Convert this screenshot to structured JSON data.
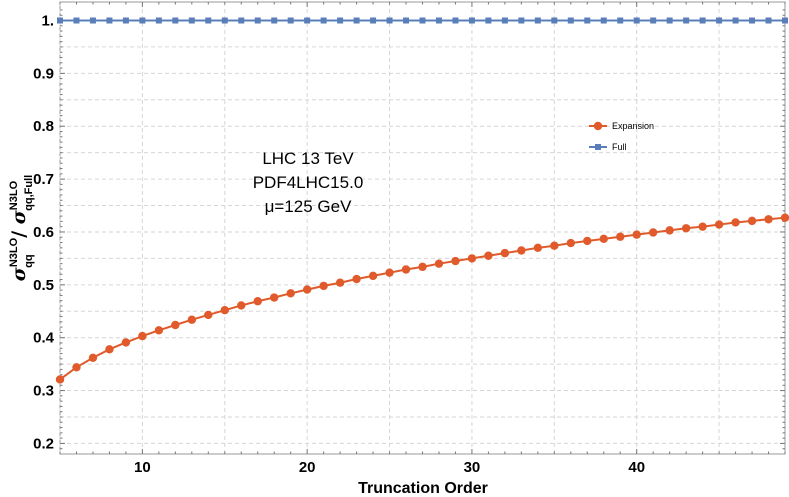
{
  "chart_data": {
    "type": "line",
    "xlabel": "Truncation Order",
    "ylabel": {
      "symbol": "σ",
      "num_sup": "N3LO",
      "num_sub": "qq",
      "slash": " / ",
      "den_sup": "N3LO",
      "den_sub": "qq,Full"
    },
    "xlim": [
      5,
      49
    ],
    "ylim": [
      0.18,
      1.035
    ],
    "x_ticks": [
      10,
      20,
      30,
      40
    ],
    "x_tick_labels": [
      "10",
      "20",
      "30",
      "40"
    ],
    "y_ticks": [
      0.2,
      0.3,
      0.4,
      0.5,
      0.6,
      0.7,
      0.8,
      0.9,
      1.0
    ],
    "y_tick_labels": [
      "0.2",
      "0.3",
      "0.4",
      "0.5",
      "0.6",
      "0.7",
      "0.8",
      "0.9",
      "1."
    ],
    "grid": true,
    "legend_position": "center-right",
    "annotation": [
      "LHC 13 TeV",
      "PDF4LHC15.0",
      "μ=125 GeV"
    ],
    "series": [
      {
        "name": "Expansion",
        "color": "#e05a2b",
        "marker": "circle",
        "x": [
          5,
          6,
          7,
          8,
          9,
          10,
          11,
          12,
          13,
          14,
          15,
          16,
          17,
          18,
          19,
          20,
          21,
          22,
          23,
          24,
          25,
          26,
          27,
          28,
          29,
          30,
          31,
          32,
          33,
          34,
          35,
          36,
          37,
          38,
          39,
          40,
          41,
          42,
          43,
          44,
          45,
          46,
          47,
          48,
          49
        ],
        "values": [
          0.321,
          0.344,
          0.362,
          0.378,
          0.391,
          0.403,
          0.414,
          0.424,
          0.434,
          0.443,
          0.452,
          0.461,
          0.469,
          0.476,
          0.484,
          0.491,
          0.498,
          0.504,
          0.511,
          0.517,
          0.523,
          0.529,
          0.534,
          0.54,
          0.545,
          0.55,
          0.555,
          0.56,
          0.565,
          0.57,
          0.574,
          0.579,
          0.583,
          0.587,
          0.591,
          0.595,
          0.599,
          0.603,
          0.607,
          0.61,
          0.614,
          0.618,
          0.621,
          0.624,
          0.627
        ]
      },
      {
        "name": "Full",
        "color": "#5a7fb8",
        "marker": "square",
        "x": [
          5,
          6,
          7,
          8,
          9,
          10,
          11,
          12,
          13,
          14,
          15,
          16,
          17,
          18,
          19,
          20,
          21,
          22,
          23,
          24,
          25,
          26,
          27,
          28,
          29,
          30,
          31,
          32,
          33,
          34,
          35,
          36,
          37,
          38,
          39,
          40,
          41,
          42,
          43,
          44,
          45,
          46,
          47,
          48,
          49
        ],
        "values": [
          1,
          1,
          1,
          1,
          1,
          1,
          1,
          1,
          1,
          1,
          1,
          1,
          1,
          1,
          1,
          1,
          1,
          1,
          1,
          1,
          1,
          1,
          1,
          1,
          1,
          1,
          1,
          1,
          1,
          1,
          1,
          1,
          1,
          1,
          1,
          1,
          1,
          1,
          1,
          1,
          1,
          1,
          1,
          1,
          1
        ]
      }
    ]
  }
}
